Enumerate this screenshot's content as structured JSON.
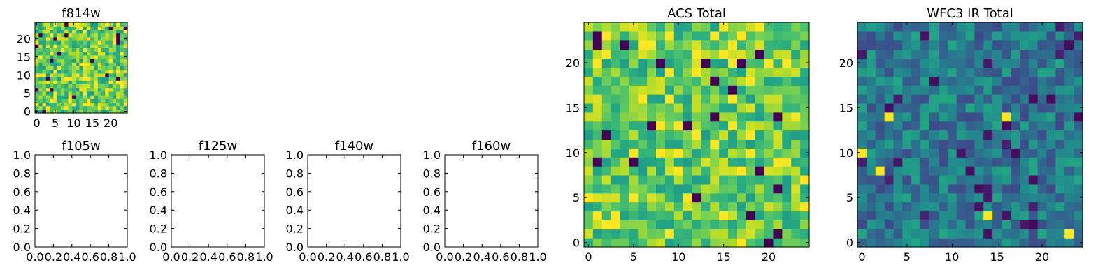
{
  "chart_data": [
    {
      "id": "f814w",
      "type": "heatmap",
      "title": "f814w",
      "xlim": [
        -0.5,
        24.5
      ],
      "ylim": [
        -0.5,
        24.5
      ],
      "xticks": [
        0,
        5,
        10,
        15,
        20
      ],
      "yticks": [
        0,
        5,
        10,
        15,
        20
      ],
      "xticklabels": [
        "0",
        "5",
        "10",
        "15",
        "20"
      ],
      "yticklabels": [
        "0",
        "5",
        "10",
        "15",
        "20"
      ],
      "grid_size": 25,
      "colormap": "viridis",
      "seed": 814,
      "profile": "bright"
    },
    {
      "id": "f105w",
      "type": "empty",
      "title": "f105w",
      "xlim": [
        0,
        1
      ],
      "ylim": [
        0,
        1
      ],
      "xticks": [
        0,
        0.2,
        0.4,
        0.6,
        0.8,
        1.0
      ],
      "yticks": [
        0,
        0.2,
        0.4,
        0.6,
        0.8,
        1.0
      ],
      "xticklabels": [
        "0.0",
        "0.2",
        "0.4",
        "0.6",
        "0.8",
        "1.0"
      ],
      "yticklabels": [
        "0.0",
        "0.2",
        "0.4",
        "0.6",
        "0.8",
        "1.0"
      ]
    },
    {
      "id": "f125w",
      "type": "empty",
      "title": "f125w",
      "xlim": [
        0,
        1
      ],
      "ylim": [
        0,
        1
      ],
      "xticks": [
        0,
        0.2,
        0.4,
        0.6,
        0.8,
        1.0
      ],
      "yticks": [
        0,
        0.2,
        0.4,
        0.6,
        0.8,
        1.0
      ],
      "xticklabels": [
        "0.0",
        "0.2",
        "0.4",
        "0.6",
        "0.8",
        "1.0"
      ],
      "yticklabels": [
        "0.0",
        "0.2",
        "0.4",
        "0.6",
        "0.8",
        "1.0"
      ]
    },
    {
      "id": "f140w",
      "type": "empty",
      "title": "f140w",
      "xlim": [
        0,
        1
      ],
      "ylim": [
        0,
        1
      ],
      "xticks": [
        0,
        0.2,
        0.4,
        0.6,
        0.8,
        1.0
      ],
      "yticks": [
        0,
        0.2,
        0.4,
        0.6,
        0.8,
        1.0
      ],
      "xticklabels": [
        "0.0",
        "0.2",
        "0.4",
        "0.6",
        "0.8",
        "1.0"
      ],
      "yticklabels": [
        "0.0",
        "0.2",
        "0.4",
        "0.6",
        "0.8",
        "1.0"
      ]
    },
    {
      "id": "f160w",
      "type": "empty",
      "title": "f160w",
      "xlim": [
        0,
        1
      ],
      "ylim": [
        0,
        1
      ],
      "xticks": [
        0,
        0.2,
        0.4,
        0.6,
        0.8,
        1.0
      ],
      "yticks": [
        0,
        0.2,
        0.4,
        0.6,
        0.8,
        1.0
      ],
      "xticklabels": [
        "0.0",
        "0.2",
        "0.4",
        "0.6",
        "0.8",
        "1.0"
      ],
      "yticklabels": [
        "0.0",
        "0.2",
        "0.4",
        "0.6",
        "0.8",
        "1.0"
      ]
    },
    {
      "id": "acs-total",
      "type": "heatmap",
      "title": "ACS Total",
      "xlim": [
        -0.5,
        24.5
      ],
      "ylim": [
        -0.5,
        24.5
      ],
      "xticks": [
        0,
        5,
        10,
        15,
        20
      ],
      "yticks": [
        0,
        5,
        10,
        15,
        20
      ],
      "xticklabels": [
        "0",
        "5",
        "10",
        "15",
        "20"
      ],
      "yticklabels": [
        "0",
        "5",
        "10",
        "15",
        "20"
      ],
      "grid_size": 25,
      "colormap": "viridis",
      "seed": 1337,
      "profile": "bright"
    },
    {
      "id": "wfc3-ir-total",
      "type": "heatmap",
      "title": "WFC3 IR Total",
      "xlim": [
        -0.5,
        24.5
      ],
      "ylim": [
        -0.5,
        24.5
      ],
      "xticks": [
        0,
        5,
        10,
        15,
        20
      ],
      "yticks": [
        0,
        5,
        10,
        15,
        20
      ],
      "xticklabels": [
        "0",
        "5",
        "10",
        "15",
        "20"
      ],
      "yticklabels": [
        "0",
        "5",
        "10",
        "15",
        "20"
      ],
      "grid_size": 25,
      "colormap": "viridis",
      "seed": 4242,
      "profile": "dark"
    }
  ],
  "colors": {
    "axis": "#000000",
    "background": "#ffffff"
  }
}
